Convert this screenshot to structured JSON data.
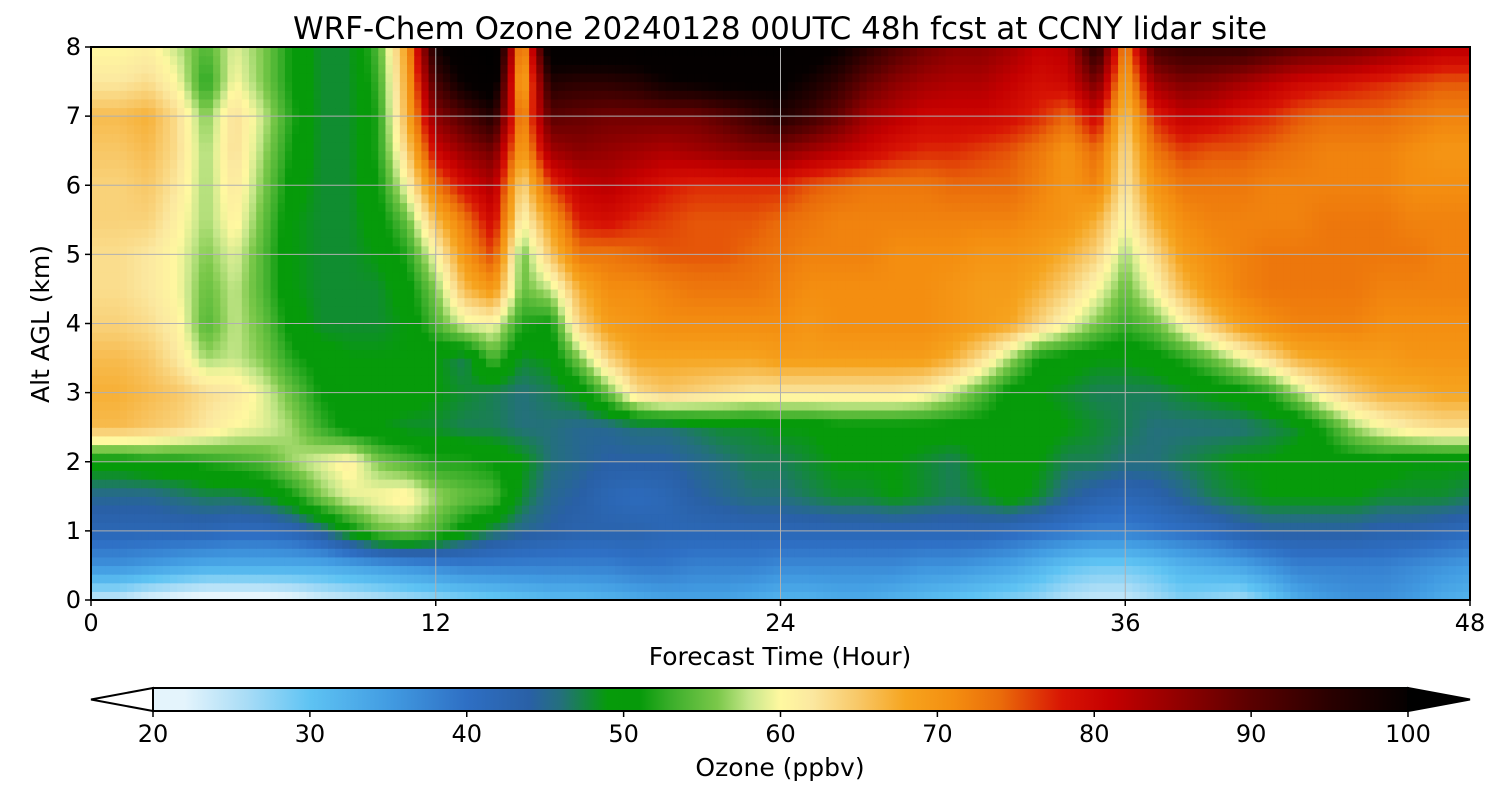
{
  "chart_data": {
    "type": "heatmap",
    "title": "WRF-Chem Ozone  20240128 00UTC 48h fcst at CCNY lidar site",
    "xlabel": "Forecast Time (Hour)",
    "ylabel": "Alt AGL (km)",
    "xlim": [
      0,
      48
    ],
    "ylim": [
      0,
      8
    ],
    "xticks": [
      0,
      12,
      24,
      36,
      48
    ],
    "yticks": [
      0,
      1,
      2,
      3,
      4,
      5,
      6,
      7,
      8
    ],
    "grid": true,
    "x_hours": [
      0,
      1,
      2,
      3,
      4,
      5,
      6,
      7,
      8,
      9,
      10,
      11,
      12,
      13,
      14,
      15,
      16,
      17,
      18,
      19,
      20,
      21,
      22,
      23,
      24,
      25,
      26,
      27,
      28,
      29,
      30,
      31,
      32,
      33,
      34,
      35,
      36,
      37,
      38,
      39,
      40,
      41,
      42,
      43,
      44,
      45,
      46,
      47,
      48
    ],
    "y_km": [
      0,
      0.5,
      1,
      1.5,
      2,
      2.5,
      3,
      3.5,
      4,
      4.5,
      5,
      5.5,
      6,
      6.5,
      7,
      7.5,
      8
    ],
    "ozone_ppbv": [
      [
        24,
        24,
        22,
        21,
        20,
        20,
        20,
        21,
        23,
        24,
        25,
        26,
        27,
        28,
        29,
        30,
        31,
        31,
        32,
        33,
        34,
        34,
        34,
        33,
        32,
        32,
        33,
        33,
        32,
        31,
        30,
        29,
        28,
        27,
        25,
        24,
        24,
        26,
        28,
        27,
        26,
        29,
        33,
        35,
        36,
        36,
        35,
        33,
        32
      ],
      [
        36,
        36,
        35,
        34,
        33,
        33,
        33,
        33,
        33,
        34,
        35,
        36,
        37,
        38,
        38,
        38,
        38,
        38,
        38,
        39,
        39,
        38,
        38,
        38,
        37,
        37,
        37,
        37,
        37,
        36,
        36,
        35,
        34,
        32,
        30,
        29,
        29,
        30,
        32,
        33,
        34,
        36,
        38,
        38,
        38,
        38,
        37,
        36,
        35
      ],
      [
        42,
        42,
        42,
        42,
        42,
        41,
        41,
        42,
        45,
        50,
        55,
        56,
        54,
        50,
        47,
        45,
        44,
        43,
        43,
        43,
        42,
        42,
        42,
        42,
        42,
        42,
        42,
        42,
        42,
        42,
        42,
        42,
        41,
        40,
        39,
        38,
        38,
        39,
        40,
        41,
        43,
        44,
        44,
        44,
        44,
        43,
        43,
        42,
        41
      ],
      [
        45,
        45,
        45,
        46,
        47,
        47,
        48,
        51,
        56,
        59,
        60,
        61,
        57,
        55,
        54,
        48,
        45,
        44,
        42,
        41,
        42,
        44,
        45,
        46,
        46,
        47,
        48,
        48,
        49,
        48,
        47,
        48,
        50,
        48,
        45,
        43,
        42,
        43,
        45,
        47,
        48,
        49,
        49,
        49,
        49,
        48,
        48,
        48,
        47
      ],
      [
        50,
        50,
        51,
        51,
        52,
        53,
        54,
        57,
        59,
        61,
        56,
        54,
        52,
        52,
        51,
        49,
        46,
        45,
        44,
        44,
        44,
        45,
        46,
        47,
        47,
        48,
        49,
        49,
        49,
        48,
        47,
        49,
        50,
        49,
        47,
        47,
        46,
        46,
        47,
        48,
        49,
        49,
        50,
        50,
        50,
        50,
        49,
        49,
        49
      ],
      [
        66,
        66,
        65,
        64,
        62,
        60,
        59,
        57,
        53,
        50,
        49,
        48,
        48,
        47,
        47,
        46,
        46,
        45,
        45,
        46,
        46,
        47,
        48,
        48,
        49,
        49,
        50,
        50,
        50,
        50,
        50,
        50,
        50,
        50,
        49,
        48,
        47,
        46,
        46,
        46,
        46,
        47,
        48,
        52,
        57,
        60,
        62,
        63,
        63
      ],
      [
        67,
        67,
        66,
        65,
        63,
        62,
        59,
        55,
        51,
        50,
        50,
        50,
        49,
        48,
        47,
        46,
        47,
        49,
        55,
        63,
        65,
        64,
        63,
        62,
        62,
        62,
        62,
        62,
        62,
        61,
        58,
        54,
        50,
        49,
        48,
        47,
        47,
        47,
        48,
        49,
        50,
        52,
        57,
        62,
        65,
        67,
        67,
        68,
        68
      ],
      [
        66,
        66,
        65,
        62,
        57,
        58,
        56,
        52,
        50,
        49,
        49,
        49,
        49,
        47,
        54,
        48,
        49,
        56,
        64,
        68,
        68,
        68,
        68,
        68,
        69,
        69,
        69,
        69,
        69,
        69,
        67,
        63,
        57,
        51,
        50,
        49,
        49,
        50,
        52,
        55,
        59,
        63,
        67,
        68,
        69,
        69,
        70,
        70,
        70
      ],
      [
        64,
        64,
        63,
        61,
        54,
        58,
        55,
        50,
        48,
        48,
        48,
        49,
        54,
        59,
        60,
        52,
        51,
        64,
        69,
        70,
        71,
        71,
        71,
        71,
        71,
        70,
        71,
        71,
        71,
        71,
        70,
        69,
        68,
        64,
        60,
        56,
        53,
        55,
        60,
        65,
        69,
        71,
        72,
        72,
        72,
        71,
        71,
        71,
        71
      ],
      [
        63,
        63,
        62,
        60,
        55,
        58,
        54,
        49,
        48,
        48,
        48,
        50,
        56,
        66,
        70,
        55,
        58,
        67,
        71,
        71,
        72,
        73,
        73,
        73,
        72,
        71,
        71,
        71,
        71,
        71,
        70,
        69,
        69,
        67,
        64,
        60,
        55,
        60,
        66,
        70,
        72,
        73,
        73,
        73,
        73,
        72,
        72,
        72,
        72
      ],
      [
        63,
        63,
        62,
        60,
        56,
        59,
        54,
        49,
        48,
        48,
        49,
        52,
        60,
        70,
        76,
        55,
        65,
        73,
        73,
        74,
        75,
        75,
        75,
        74,
        73,
        72,
        72,
        72,
        71,
        71,
        71,
        70,
        70,
        69,
        67,
        64,
        57,
        63,
        69,
        71,
        72,
        73,
        73,
        73,
        73,
        73,
        73,
        72,
        72
      ],
      [
        64,
        64,
        64,
        61,
        57,
        61,
        55,
        49,
        48,
        48,
        50,
        55,
        66,
        73,
        80,
        60,
        69,
        78,
        79,
        77,
        76,
        75,
        75,
        75,
        74,
        73,
        72,
        72,
        72,
        72,
        72,
        72,
        72,
        71,
        70,
        67,
        60,
        67,
        71,
        72,
        72,
        72,
        72,
        73,
        73,
        73,
        72,
        72,
        72
      ],
      [
        64,
        64,
        65,
        62,
        57,
        62,
        56,
        50,
        48,
        48,
        51,
        60,
        73,
        79,
        83,
        63,
        76,
        81,
        82,
        80,
        78,
        77,
        77,
        77,
        77,
        75,
        74,
        73,
        73,
        73,
        74,
        74,
        74,
        72,
        70,
        72,
        62,
        70,
        73,
        73,
        73,
        72,
        72,
        72,
        72,
        72,
        71,
        71,
        71
      ],
      [
        65,
        65,
        66,
        63,
        57,
        63,
        57,
        51,
        48,
        48,
        52,
        64,
        80,
        85,
        88,
        68,
        84,
        86,
        85,
        84,
        83,
        84,
        85,
        86,
        86,
        84,
        82,
        80,
        78,
        77,
        77,
        76,
        75,
        73,
        70,
        74,
        63,
        73,
        76,
        75,
        75,
        74,
        73,
        72,
        72,
        72,
        71,
        70,
        70
      ],
      [
        66,
        66,
        67,
        63,
        56,
        63,
        58,
        52,
        48,
        48,
        52,
        67,
        86,
        91,
        96,
        70,
        90,
        89,
        88,
        88,
        88,
        88,
        90,
        93,
        96,
        93,
        89,
        84,
        82,
        80,
        80,
        80,
        79,
        77,
        74,
        80,
        65,
        77,
        81,
        80,
        78,
        77,
        75,
        74,
        74,
        74,
        73,
        72,
        72
      ],
      [
        62,
        62,
        63,
        60,
        52,
        60,
        56,
        51,
        48,
        48,
        53,
        68,
        92,
        100,
        104,
        66,
        96,
        95,
        95,
        96,
        99,
        100,
        101,
        101,
        101,
        98,
        94,
        89,
        86,
        84,
        83,
        83,
        81,
        79,
        80,
        88,
        68,
        84,
        87,
        86,
        84,
        82,
        80,
        79,
        78,
        77,
        76,
        75,
        75
      ],
      [
        60,
        60,
        61,
        58,
        54,
        59,
        56,
        51,
        48,
        48,
        54,
        69,
        98,
        105,
        110,
        68,
        104,
        104,
        104,
        104,
        104,
        104,
        104,
        104,
        104,
        103,
        100,
        95,
        91,
        88,
        86,
        86,
        84,
        81,
        82,
        96,
        71,
        92,
        94,
        94,
        94,
        92,
        90,
        89,
        88,
        86,
        84,
        82,
        82
      ]
    ]
  },
  "colorbar": {
    "label": "Ozone  (ppbv)",
    "min": 20,
    "max": 100,
    "ticks": [
      20,
      30,
      40,
      50,
      60,
      70,
      80,
      90,
      100
    ],
    "extend": "both",
    "colormap_stops": [
      [
        18,
        "#ffffff"
      ],
      [
        22,
        "#e4f4fc"
      ],
      [
        26,
        "#a8dcf6"
      ],
      [
        30,
        "#5ec3f3"
      ],
      [
        35,
        "#429ce2"
      ],
      [
        40,
        "#2e6fc4"
      ],
      [
        44,
        "#2960a6"
      ],
      [
        46,
        "#24707c"
      ],
      [
        49,
        "#069b0a"
      ],
      [
        51,
        "#069a0a"
      ],
      [
        53,
        "#3aae2a"
      ],
      [
        56,
        "#7bc84a"
      ],
      [
        58,
        "#c6e78a"
      ],
      [
        60,
        "#fff8a0"
      ],
      [
        62,
        "#fbe8a0"
      ],
      [
        65,
        "#f8c766"
      ],
      [
        68,
        "#f6a41e"
      ],
      [
        71,
        "#f48e10"
      ],
      [
        74,
        "#ea6c0a"
      ],
      [
        78,
        "#d81404"
      ],
      [
        81,
        "#c50000"
      ],
      [
        85,
        "#960000"
      ],
      [
        90,
        "#5a0000"
      ],
      [
        95,
        "#2a0000"
      ],
      [
        100,
        "#050000"
      ],
      [
        110,
        "#000000"
      ]
    ]
  }
}
